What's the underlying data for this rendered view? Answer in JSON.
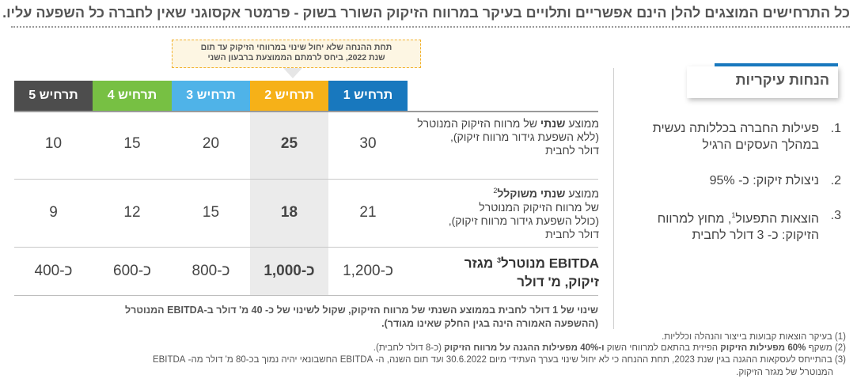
{
  "header": {
    "text": "כל התרחישים המוצגים להלן הינם אפשריים ותלויים בעיקר במרווח הזיקוק השורר בשוק - פרמטר אקסוגני שאין לחברה כל השפעה עליו."
  },
  "callout": {
    "line1": "תחת ההנחה שלא יחול שינוי במרווחי הזיקוק עד תום",
    "line2": "שנת 2022, ביחס לרמתם הממוצעת ברבעון השני"
  },
  "scenarios": [
    "תרחיש 1",
    "תרחיש 2",
    "תרחיש 3",
    "תרחיש 4",
    "תרחיש 5"
  ],
  "colors": {
    "scenario_1": "#1878be",
    "scenario_2": "#f6b118",
    "scenario_3": "#4fb3e8",
    "scenario_4": "#77c043",
    "scenario_5": "#4d4d4d"
  },
  "rows": [
    {
      "label_pre": "ממוצע ",
      "label_bold": "שנתי",
      "label_post": " של מרווח הזיקוק המנוטרל",
      "label_line2": "(ללא השפעת גידור מרווח זיקוק),",
      "label_line3": "דולר לחבית",
      "values": [
        "30",
        "25",
        "20",
        "15",
        "10"
      ]
    },
    {
      "label_pre": "ממוצע ",
      "label_bold": "שנתי משוקלל",
      "label_sup": "2",
      "label_line1b": "של מרווח הזיקוק המנוטרל",
      "label_line2": "(כולל השפעת גידור מרווח זיקוק),",
      "label_line3": "דולר לחבית",
      "values": [
        "21",
        "18",
        "15",
        "12",
        "9"
      ]
    },
    {
      "label_a": "EBITDA מנוטרל",
      "label_sup": "3",
      "label_b": " מגזר",
      "label_line2": "זיקוק, מ' דולר",
      "values": [
        "כ-1,200",
        "כ-1,000",
        "כ-800",
        "כ-600",
        "כ-400"
      ]
    }
  ],
  "note": {
    "line1": "שינוי של 1 דולר לחבית בממוצע השנתי של מרווח הזיקוק, שקול לשינוי של כ- 40 מ' דולר ב-EBITDA המנוטרל",
    "line2": "(ההשפעה האמורה הינה בגין החלק שאינו מגודר)."
  },
  "assumptions": {
    "title": "הנחות עיקריות",
    "items": [
      {
        "num": "1.",
        "text": "פעילות החברה בכללותה נעשית במהלך העסקים הרגיל"
      },
      {
        "num": "2.",
        "text": "ניצולת זיקוק: כ- 95%"
      },
      {
        "num": "3.",
        "text_a": "הוצאות התפעול",
        "sup": "1",
        "text_b": ", מחוץ למרווח הזיקוק: כ- 3 דולר לחבית"
      }
    ]
  },
  "footnotes": {
    "fn1": "(1) בעיקר הוצאות קבועות בייצור והנהלה וכלליות.",
    "fn2_a": "(2) משקף ",
    "fn2_b": "60% מפעילות הזיקוק",
    "fn2_c": " הפיזית בהתאם למרווחי השוק ",
    "fn2_d": "ו-40% מפעילות ההגנה על מרווח הזיקוק",
    "fn2_e": " (כ-8 דולר לחבית).",
    "fn3_line1": "(3) בהתייחס לעסקאות ההגנה בגין שנת 2023, תחת ההנחה כי לא יחול שינוי בערך העתידי מיום 30.6.2022 ועד תום השנה, ה- EBITDA החשבונאי יהיה נמוך בכ-80 מ' דולר מה- EBITDA",
    "fn3_line2": "המנוטרל של מגזר הזיקוק."
  }
}
